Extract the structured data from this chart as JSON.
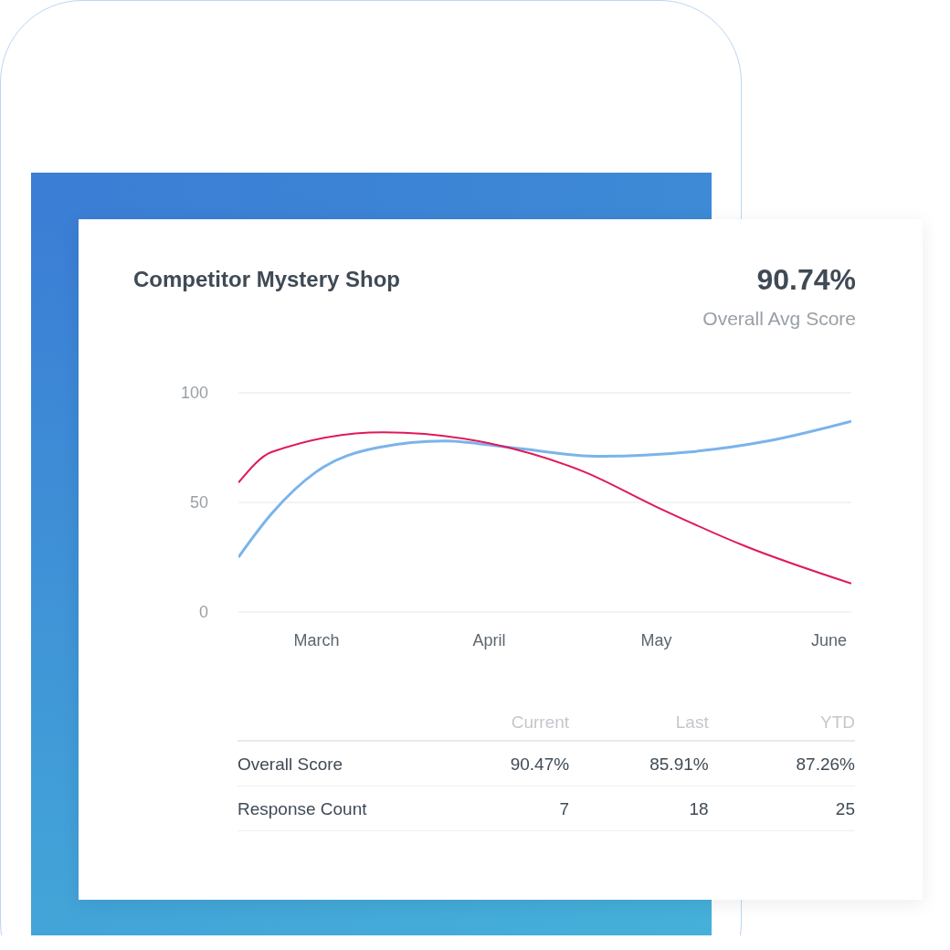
{
  "chart_data": {
    "type": "line",
    "title": "Competitor Mystery Shop",
    "annotations": [
      "90.74%",
      "Overall Avg Score",
      "Current",
      "Last",
      "YTD",
      "Overall Score",
      "90.47%",
      "85.91%",
      "87.26%",
      "Response Count",
      "7",
      "18",
      "25"
    ],
    "xlim": [
      "--02-15",
      "--06-05"
    ],
    "xticks": [
      {
        "value": "--03-01",
        "label": "March"
      },
      {
        "value": "--04-01",
        "label": "April"
      },
      {
        "value": "--05-01",
        "label": "May"
      },
      {
        "value": "--06-01",
        "label": "June"
      }
    ],
    "ylim": [
      0,
      100
    ],
    "yticks": [
      0,
      50,
      100
    ],
    "grid": "y",
    "marker": "none",
    "line_style": "solid",
    "series": [
      {
        "color": "#7ab4ea",
        "x": [
          "--02-15",
          "--02-21",
          "--03-01",
          "--03-12",
          "--03-24",
          "--04-05",
          "--04-21",
          "--05-07",
          "--05-21",
          "--06-05"
        ],
        "values": [
          25,
          45,
          64,
          75,
          78,
          75,
          71,
          73,
          78,
          87
        ]
      },
      {
        "color": "#e0185a",
        "x": [
          "--02-15",
          "--02-21",
          "--03-13",
          "--04-01",
          "--04-18",
          "--05-01",
          "--05-17",
          "--06-05"
        ],
        "values": [
          59,
          73,
          82,
          77,
          64,
          48,
          30,
          13
        ]
      }
    ]
  }
}
